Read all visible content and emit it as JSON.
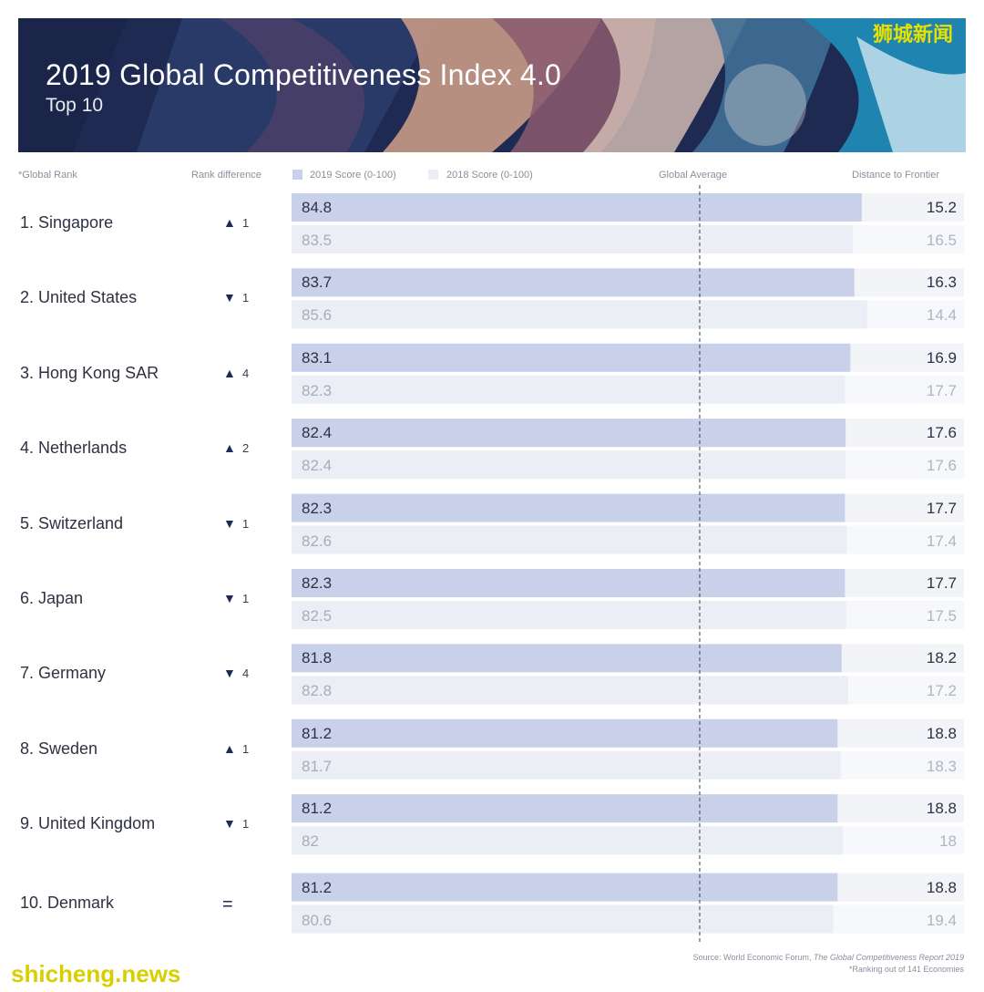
{
  "header": {
    "title": "2019 Global Competitiveness Index 4.0",
    "subtitle": "Top 10"
  },
  "watermarks": {
    "top": "狮城新闻",
    "bottom": "shicheng.news"
  },
  "columns": {
    "rank": "*Global Rank",
    "rank_difference": "Rank difference",
    "score_2019": "2019 Score (0-100)",
    "score_2018": "2018 Score (0-100)",
    "global_average": "Global Average",
    "distance": "Distance to Frontier"
  },
  "footer": {
    "source_prefix": "Source:  World Economic Forum,",
    "source_title": "The Global Competitiveness Report 2019",
    "note": "*Ranking out of 141 Economies"
  },
  "colors": {
    "bar_2019": "#c9d0ea",
    "bar_2018": "#eceef6",
    "remainder_2019": "#f3f4f8",
    "remainder_2018": "#f7f8fb",
    "arrow": "#1e2a5a"
  },
  "chart_data": {
    "type": "bar",
    "orientation": "horizontal",
    "title": "2019 Global Competitiveness Index 4.0",
    "subtitle": "Top 10",
    "xlim": [
      0,
      100
    ],
    "global_average": 60.7,
    "categories": [
      "1. Singapore",
      "2. United States",
      "3. Hong Kong SAR",
      "4. Netherlands",
      "5. Switzerland",
      "6. Japan",
      "7. Germany",
      "8. Sweden",
      "9. United Kingdom",
      "10. Denmark"
    ],
    "rank_difference": [
      {
        "dir": "up",
        "value": "1"
      },
      {
        "dir": "down",
        "value": "1"
      },
      {
        "dir": "up",
        "value": "4"
      },
      {
        "dir": "up",
        "value": "2"
      },
      {
        "dir": "down",
        "value": "1"
      },
      {
        "dir": "down",
        "value": "1"
      },
      {
        "dir": "down",
        "value": "4"
      },
      {
        "dir": "up",
        "value": "1"
      },
      {
        "dir": "down",
        "value": "1"
      },
      {
        "dir": "same",
        "value": "="
      }
    ],
    "series": [
      {
        "name": "2019 Score (0-100)",
        "values": [
          84.8,
          83.7,
          83.1,
          82.4,
          82.3,
          82.3,
          81.8,
          81.2,
          81.2,
          81.2
        ],
        "labels": [
          "84.8",
          "83.7",
          "83.1",
          "82.4",
          "82.3",
          "82.3",
          "81.8",
          "81.2",
          "81.2",
          "81.2"
        ]
      },
      {
        "name": "2018 Score (0-100)",
        "values": [
          83.5,
          85.6,
          82.3,
          82.4,
          82.6,
          82.5,
          82.8,
          81.7,
          82,
          80.6
        ],
        "labels": [
          "83.5",
          "85.6",
          "82.3",
          "82.4",
          "82.6",
          "82.5",
          "82.8",
          "81.7",
          "82",
          "80.6"
        ]
      }
    ],
    "distance_to_frontier": {
      "2019": [
        "15.2",
        "16.3",
        "16.9",
        "17.6",
        "17.7",
        "17.7",
        "18.2",
        "18.8",
        "18.8",
        "18.8"
      ],
      "2018": [
        "16.5",
        "14.4",
        "17.7",
        "17.6",
        "17.4",
        "17.5",
        "17.2",
        "18.3",
        "18",
        "19.4"
      ]
    }
  }
}
